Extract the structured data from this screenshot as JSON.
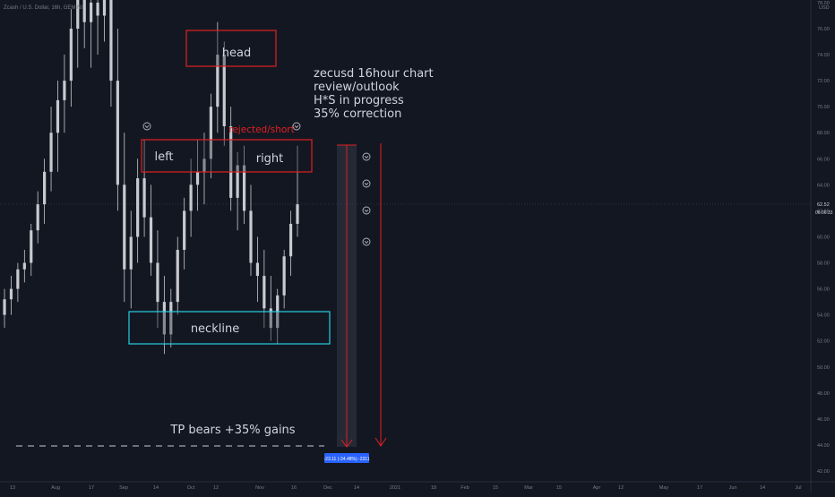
{
  "header": {
    "title": "Zcash / U.S. Dollar, 16h, GEMINI",
    "currency": "USD"
  },
  "chart_data": {
    "type": "candlestick",
    "symbol": "ZECUSD",
    "interval": "16h",
    "exchange": "GEMINI",
    "colors": {
      "background": "#131722",
      "candle": "#c8cad0",
      "box_red": "#e02020",
      "box_cyan": "#26d0e0",
      "arrow": "#e02020",
      "measure_tag": "#2962ff",
      "text": "#d1d4dc",
      "red_text": "#e02020"
    },
    "y_axis": {
      "min": 42,
      "max": 78,
      "ticks": [
        "78.00",
        "76.00",
        "74.00",
        "72.00",
        "70.00",
        "68.00",
        "66.00",
        "64.00",
        "62.00",
        "60.00",
        "58.00",
        "56.00",
        "54.00",
        "52.00",
        "50.00",
        "48.00",
        "46.00",
        "44.00",
        "42.00"
      ]
    },
    "last_price": {
      "value": 62.52,
      "label": "62.52",
      "countdown": "06:06:33"
    },
    "x_axis": {
      "labels": [
        "13",
        "Aug",
        "17",
        "Sep",
        "14",
        "Oct",
        "12",
        "Nov",
        "16",
        "Dec",
        "14",
        "2021",
        "18",
        "Feb",
        "15",
        "Mar",
        "15",
        "Apr",
        "12",
        "May",
        "17",
        "Jun",
        "14",
        "Jul"
      ]
    },
    "series": [
      {
        "x": "2020-07-06",
        "o": 52.0,
        "h": 54.5,
        "l": 51.5,
        "c": 54.0
      },
      {
        "x": "2020-07-09",
        "o": 54.0,
        "h": 56.0,
        "l": 53.0,
        "c": 55.2
      },
      {
        "x": "2020-07-12",
        "o": 55.2,
        "h": 57.0,
        "l": 54.0,
        "c": 56.0
      },
      {
        "x": "2020-07-15",
        "o": 56.0,
        "h": 58.0,
        "l": 55.0,
        "c": 57.5
      },
      {
        "x": "2020-07-18",
        "o": 57.5,
        "h": 59.0,
        "l": 56.5,
        "c": 58.0
      },
      {
        "x": "2020-07-21",
        "o": 58.0,
        "h": 61.0,
        "l": 57.0,
        "c": 60.5
      },
      {
        "x": "2020-07-24",
        "o": 60.5,
        "h": 63.5,
        "l": 59.5,
        "c": 62.5
      },
      {
        "x": "2020-07-27",
        "o": 62.5,
        "h": 66.0,
        "l": 61.0,
        "c": 65.0
      },
      {
        "x": "2020-07-30",
        "o": 65.0,
        "h": 70.0,
        "l": 63.5,
        "c": 68.0
      },
      {
        "x": "2020-08-02",
        "o": 68.0,
        "h": 72.0,
        "l": 65.0,
        "c": 70.5
      },
      {
        "x": "2020-08-05",
        "o": 70.5,
        "h": 74.0,
        "l": 68.0,
        "c": 72.0
      },
      {
        "x": "2020-08-08",
        "o": 72.0,
        "h": 77.5,
        "l": 70.0,
        "c": 76.0
      },
      {
        "x": "2020-08-11",
        "o": 76.0,
        "h": 79.0,
        "l": 73.0,
        "c": 78.5
      },
      {
        "x": "2020-08-14",
        "o": 78.5,
        "h": 80.0,
        "l": 74.5,
        "c": 76.5
      },
      {
        "x": "2020-08-17",
        "o": 76.5,
        "h": 80.0,
        "l": 73.0,
        "c": 78.0
      },
      {
        "x": "2020-08-20",
        "o": 78.0,
        "h": 80.0,
        "l": 74.0,
        "c": 77.0
      },
      {
        "x": "2020-08-23",
        "o": 77.0,
        "h": 80.0,
        "l": 75.0,
        "c": 79.0
      },
      {
        "x": "2020-08-26",
        "o": 79.0,
        "h": 80.0,
        "l": 70.0,
        "c": 72.0
      },
      {
        "x": "2020-08-29",
        "o": 72.0,
        "h": 76.0,
        "l": 62.0,
        "c": 64.0
      },
      {
        "x": "2020-09-01",
        "o": 64.0,
        "h": 68.0,
        "l": 55.0,
        "c": 57.5
      },
      {
        "x": "2020-09-04",
        "o": 57.5,
        "h": 62.0,
        "l": 54.5,
        "c": 60.0
      },
      {
        "x": "2020-09-07",
        "o": 60.0,
        "h": 66.0,
        "l": 58.0,
        "c": 64.5
      },
      {
        "x": "2020-09-10",
        "o": 64.5,
        "h": 67.5,
        "l": 60.0,
        "c": 61.5
      },
      {
        "x": "2020-09-13",
        "o": 61.5,
        "h": 64.0,
        "l": 57.0,
        "c": 58.0
      },
      {
        "x": "2020-09-16",
        "o": 58.0,
        "h": 60.5,
        "l": 53.0,
        "c": 55.0
      },
      {
        "x": "2020-09-19",
        "o": 55.0,
        "h": 57.0,
        "l": 51.0,
        "c": 52.5
      },
      {
        "x": "2020-09-22",
        "o": 52.5,
        "h": 56.0,
        "l": 51.5,
        "c": 55.0
      },
      {
        "x": "2020-09-25",
        "o": 55.0,
        "h": 60.0,
        "l": 54.0,
        "c": 59.0
      },
      {
        "x": "2020-09-28",
        "o": 59.0,
        "h": 63.0,
        "l": 57.5,
        "c": 62.0
      },
      {
        "x": "2020-10-01",
        "o": 62.0,
        "h": 66.0,
        "l": 60.0,
        "c": 64.0
      },
      {
        "x": "2020-10-04",
        "o": 64.0,
        "h": 67.5,
        "l": 62.0,
        "c": 65.0
      },
      {
        "x": "2020-10-07",
        "o": 65.0,
        "h": 68.0,
        "l": 62.5,
        "c": 66.0
      },
      {
        "x": "2020-10-10",
        "o": 66.0,
        "h": 71.0,
        "l": 64.5,
        "c": 70.0
      },
      {
        "x": "2020-10-13",
        "o": 70.0,
        "h": 76.5,
        "l": 68.0,
        "c": 74.0
      },
      {
        "x": "2020-10-16",
        "o": 74.0,
        "h": 75.0,
        "l": 67.0,
        "c": 68.5
      },
      {
        "x": "2020-10-19",
        "o": 68.5,
        "h": 70.0,
        "l": 62.0,
        "c": 63.0
      },
      {
        "x": "2020-10-22",
        "o": 63.0,
        "h": 66.5,
        "l": 60.5,
        "c": 65.5
      },
      {
        "x": "2020-10-25",
        "o": 65.5,
        "h": 67.0,
        "l": 61.0,
        "c": 62.0
      },
      {
        "x": "2020-10-28",
        "o": 62.0,
        "h": 64.0,
        "l": 57.0,
        "c": 58.0
      },
      {
        "x": "2020-10-31",
        "o": 58.0,
        "h": 60.0,
        "l": 55.0,
        "c": 57.0
      },
      {
        "x": "2020-11-03",
        "o": 57.0,
        "h": 59.0,
        "l": 53.0,
        "c": 54.5
      },
      {
        "x": "2020-11-06",
        "o": 54.5,
        "h": 57.0,
        "l": 52.0,
        "c": 53.0
      },
      {
        "x": "2020-11-09",
        "o": 53.0,
        "h": 56.0,
        "l": 51.8,
        "c": 55.5
      },
      {
        "x": "2020-11-12",
        "o": 55.5,
        "h": 59.0,
        "l": 54.5,
        "c": 58.5
      },
      {
        "x": "2020-11-15",
        "o": 58.5,
        "h": 62.0,
        "l": 57.0,
        "c": 61.0
      },
      {
        "x": "2020-11-18",
        "o": 61.0,
        "h": 67.0,
        "l": 60.0,
        "c": 62.5
      }
    ],
    "annotations": {
      "note_lines": [
        "zecusd 16hour chart",
        "review/outlook",
        "H*S in progress",
        "35% correction"
      ],
      "head": "head",
      "left": "left",
      "right": "right",
      "neckline": "neckline",
      "rejected": "rejected/short",
      "tp": "TP bears +35% gains",
      "measure": "-23.11 (-34.48%) -2311"
    }
  }
}
